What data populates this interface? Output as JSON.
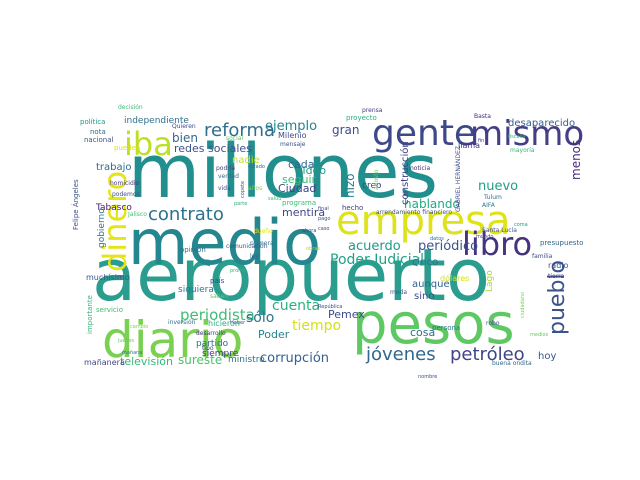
{
  "wordcloud": {
    "words": [
      {
        "text": "millones",
        "color": "#218f8d"
      },
      {
        "text": "aeropuerto",
        "color": "#2a9d8f"
      },
      {
        "text": "medio",
        "color": "#24868e"
      },
      {
        "text": "pesos",
        "color": "#5ec962"
      },
      {
        "text": "diario",
        "color": "#7ad151"
      },
      {
        "text": "empresa",
        "color": "#dde318"
      },
      {
        "text": "gente",
        "color": "#3e4989"
      },
      {
        "text": "mismo",
        "color": "#433e85"
      },
      {
        "text": "libro",
        "color": "#46327e"
      },
      {
        "text": "dinero",
        "color": "#e5e419"
      },
      {
        "text": "iba",
        "color": "#bddf26"
      },
      {
        "text": "reforma",
        "color": "#2e6e8e"
      },
      {
        "text": "contrato",
        "color": "#2c728e"
      },
      {
        "text": "pueblo",
        "color": "#3b528b"
      },
      {
        "text": "jóvenes",
        "color": "#31688e"
      },
      {
        "text": "petróleo",
        "color": "#414487"
      },
      {
        "text": "periodista",
        "color": "#3fbc73"
      },
      {
        "text": "Poder Judicial",
        "color": "#1fa187"
      },
      {
        "text": "corrupción",
        "color": "#355f8d"
      },
      {
        "text": "cuenta",
        "color": "#2ab07f"
      },
      {
        "text": "tiempo",
        "color": "#d2e21b"
      },
      {
        "text": "televisión",
        "color": "#35b779"
      },
      {
        "text": "ejemplo",
        "color": "#25848e"
      },
      {
        "text": "redes sociales",
        "color": "#3b528b"
      },
      {
        "text": "bien",
        "color": "#30698e"
      },
      {
        "text": "gran",
        "color": "#3e4c8a"
      },
      {
        "text": "hizo",
        "color": "#277f8e"
      },
      {
        "text": "nuevo",
        "color": "#1f9e89"
      },
      {
        "text": "menos",
        "color": "#482878"
      },
      {
        "text": "acuerdo",
        "color": "#1f9a8a"
      },
      {
        "text": "periódico",
        "color": "#3a548c"
      },
      {
        "text": "hablando",
        "color": "#22a884"
      },
      {
        "text": "sólo",
        "color": "#2c738e"
      },
      {
        "text": "sureste",
        "color": "#4ac16d"
      },
      {
        "text": "Pemex",
        "color": "#3e4a89"
      },
      {
        "text": "mentira",
        "color": "#3f4788"
      },
      {
        "text": "seguir",
        "color": "#3dbc74"
      },
      {
        "text": "Ciudad",
        "color": "#404688"
      },
      {
        "text": "video",
        "color": "#1e9b8a"
      },
      {
        "text": "cada",
        "color": "#31668e"
      },
      {
        "text": "nadie",
        "color": "#c5e021"
      },
      {
        "text": "trabajo",
        "color": "#2f6b8e"
      },
      {
        "text": "desaparecido",
        "color": "#34618d"
      },
      {
        "text": "independiente",
        "color": "#2e6f8e"
      },
      {
        "text": "construcción",
        "color": "#404387"
      },
      {
        "text": "cinco",
        "color": "#2d708e"
      },
      {
        "text": "aunque",
        "color": "#32648e"
      },
      {
        "text": "sino",
        "color": "#3d4e8a"
      },
      {
        "text": "cosa",
        "color": "#2d708e"
      },
      {
        "text": "hoy",
        "color": "#3b528b"
      },
      {
        "text": "creo",
        "color": "#3f4889"
      },
      {
        "text": "Tabasco",
        "color": "#481a6c"
      },
      {
        "text": "gobierno",
        "color": "#2a768e"
      },
      {
        "text": "muchísimo",
        "color": "#39568c"
      },
      {
        "text": "siquiera",
        "color": "#2c738e"
      },
      {
        "text": "Poder",
        "color": "#26828e"
      },
      {
        "text": "Lago",
        "color": "#a8db34"
      },
      {
        "text": "radio",
        "color": "#39568c"
      },
      {
        "text": "presupuesto",
        "color": "#31688e"
      },
      {
        "text": "opinión",
        "color": "#2f6c8e"
      },
      {
        "text": "ministro",
        "color": "#2c728e"
      },
      {
        "text": "partido",
        "color": "#2e6e8e"
      },
      {
        "text": "siempre",
        "color": "#433e85"
      },
      {
        "text": "mañanera",
        "color": "#3f4788"
      },
      {
        "text": "Milenio",
        "color": "#3e4c8a"
      },
      {
        "text": "llama",
        "color": "#46327e"
      },
      {
        "text": "mayoría",
        "color": "#35b779"
      },
      {
        "text": "Basta",
        "color": "#482878"
      },
      {
        "text": "prensa",
        "color": "#443a83"
      },
      {
        "text": "proyecto",
        "color": "#2ab07f"
      },
      {
        "text": "decisión",
        "color": "#3fbc73"
      },
      {
        "text": "política",
        "color": "#1f9a8a"
      },
      {
        "text": "nota",
        "color": "#31688e"
      },
      {
        "text": "nacional",
        "color": "#3b528b"
      },
      {
        "text": "pueden",
        "color": "#dde318"
      },
      {
        "text": "Quieren",
        "color": "#3e4989"
      },
      {
        "text": "social",
        "color": "#5ec962"
      },
      {
        "text": "mensaje",
        "color": "#3b528b"
      },
      {
        "text": "podría",
        "color": "#443983"
      },
      {
        "text": "verdad",
        "color": "#31688e"
      },
      {
        "text": "homicidio",
        "color": "#453882"
      },
      {
        "text": "vida",
        "color": "#3e4a89"
      },
      {
        "text": "años",
        "color": "#7ad151"
      },
      {
        "text": "programa",
        "color": "#3dbc74"
      },
      {
        "text": "agosto",
        "color": "#5ec962"
      },
      {
        "text": "noticia",
        "color": "#482878"
      },
      {
        "text": "GABRIEL HERNÁNDEZ",
        "color": "#3e4989"
      },
      {
        "text": "Felipe Ángeles",
        "color": "#3b528b"
      },
      {
        "text": "hecho",
        "color": "#443a83"
      },
      {
        "text": "arrendamiento financiero",
        "color": "#3b528b"
      },
      {
        "text": "AIFA",
        "color": "#2a788e"
      },
      {
        "text": "Tulum",
        "color": "#2e6e8e"
      },
      {
        "text": "Santa Lucía",
        "color": "#3b528b"
      },
      {
        "text": "dólares",
        "color": "#d2e21b"
      },
      {
        "text": "moda",
        "color": "#3b528b"
      },
      {
        "text": "persona",
        "color": "#2c728e"
      },
      {
        "text": "robo",
        "color": "#3e4989"
      },
      {
        "text": "buena ondita",
        "color": "#31688e"
      },
      {
        "text": "inversión",
        "color": "#2d708e"
      },
      {
        "text": "desarrollo",
        "color": "#453781"
      },
      {
        "text": "tipo",
        "color": "#3e4c8a"
      },
      {
        "text": "hicieron",
        "color": "#2ab07f"
      },
      {
        "text": "importante",
        "color": "#35b779"
      },
      {
        "text": "servicio",
        "color": "#3fbc73"
      },
      {
        "text": "comunicación",
        "color": "#3b528b"
      },
      {
        "text": "primera",
        "color": "#2c728e"
      },
      {
        "text": "ley",
        "color": "#31688e"
      },
      {
        "text": "país",
        "color": "#404688"
      },
      {
        "text": "saben",
        "color": "#5ec962"
      },
      {
        "text": "familia",
        "color": "#3e4989"
      },
      {
        "text": "tierra",
        "color": "#443983"
      },
      {
        "text": "República",
        "color": "#3b528b"
      },
      {
        "text": "nombre",
        "color": "#3e4c8a"
      },
      {
        "text": "Jalisco",
        "color": "#3fbc73"
      },
      {
        "text": "podemos",
        "color": "#3b528b"
      },
      {
        "text": "jueces",
        "color": "#5ec962"
      },
      {
        "text": "cambio",
        "color": "#7ad151"
      },
      {
        "text": "dueño",
        "color": "#dde318"
      },
      {
        "text": "final",
        "color": "#3b528b"
      },
      {
        "text": "pronto",
        "color": "#35b779"
      },
      {
        "text": "parte",
        "color": "#2ab07f"
      },
      {
        "text": "salud",
        "color": "#3fbc73"
      },
      {
        "text": "obras",
        "color": "#a8db34"
      },
      {
        "text": "mañana",
        "color": "#2a788e"
      },
      {
        "text": "medios",
        "color": "#5ec962"
      },
      {
        "text": "ciudadano",
        "color": "#7ad151"
      },
      {
        "text": "mundo",
        "color": "#3e4c8a"
      },
      {
        "text": "datos",
        "color": "#31688e"
      },
      {
        "text": "estado",
        "color": "#2e6e8e"
      },
      {
        "text": "pago",
        "color": "#3b528b"
      },
      {
        "text": "fin",
        "color": "#443a83"
      },
      {
        "text": "ahora",
        "color": "#404688"
      },
      {
        "text": "caso",
        "color": "#3e4989"
      },
      {
        "text": "copete",
        "color": "#3e4a89"
      },
      {
        "text": "coma",
        "color": "#1f9e89"
      },
      {
        "text": "Haber",
        "color": "#3b528b"
      },
      {
        "text": "fiscalía",
        "color": "#35b779"
      }
    ]
  }
}
